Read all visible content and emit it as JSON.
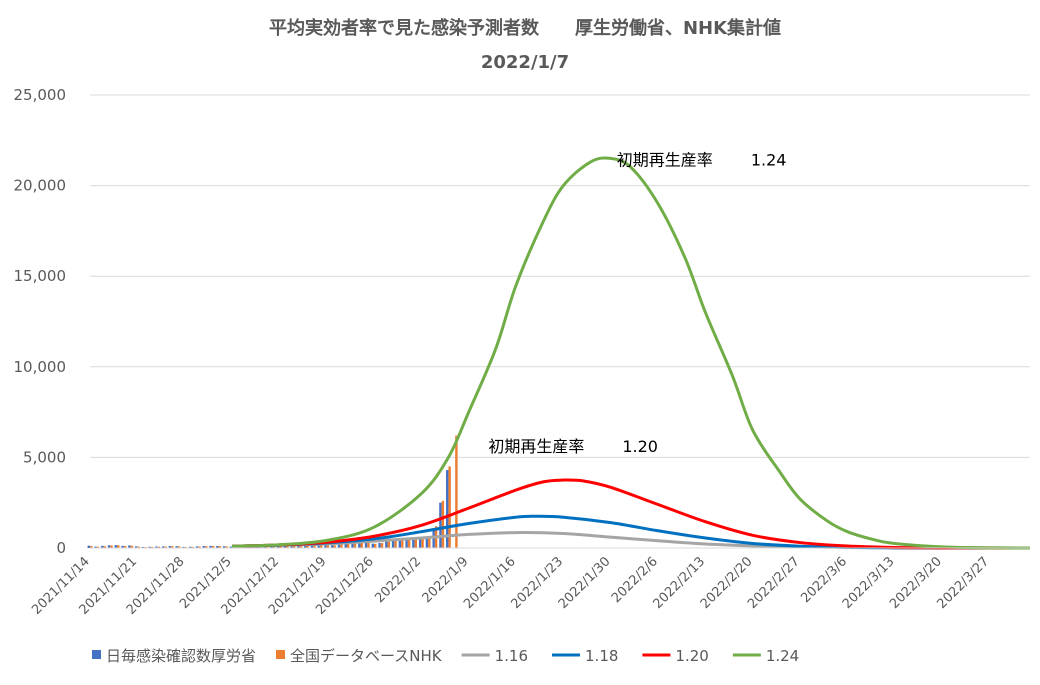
{
  "chart_data": {
    "type": "line",
    "title": "平均実効者率で見た感染予測者数　　厚生労働省、NHK集計値",
    "subtitle": "2022/1/7",
    "xlabel": "",
    "ylabel": "",
    "ylim": [
      0,
      25000
    ],
    "y_ticks": [
      "0",
      "5,000",
      "10,000",
      "15,000",
      "20,000",
      "25,000"
    ],
    "x_ticks": [
      "2021/11/14",
      "2021/11/21",
      "2021/11/28",
      "2021/12/5",
      "2021/12/12",
      "2021/12/19",
      "2021/12/26",
      "2022/1/2",
      "2022/1/9",
      "2022/1/16",
      "2022/1/23",
      "2022/1/30",
      "2022/2/6",
      "2022/2/13",
      "2022/2/20",
      "2022/2/27",
      "2022/3/6",
      "2022/3/13",
      "2022/3/20",
      "2022/3/27"
    ],
    "x_start": "2021/11/14",
    "x_end": "2022/4/2",
    "grid": true,
    "legend_position": "bottom",
    "bar_series": [
      {
        "name": "日毎感染確認数厚労省",
        "color": "#4472C4",
        "dates": [
          "2021/11/14",
          "2021/11/15",
          "2021/11/16",
          "2021/11/17",
          "2021/11/18",
          "2021/11/19",
          "2021/11/20",
          "2021/11/21",
          "2021/11/22",
          "2021/11/23",
          "2021/11/24",
          "2021/11/25",
          "2021/11/26",
          "2021/11/27",
          "2021/11/28",
          "2021/11/29",
          "2021/11/30",
          "2021/12/1",
          "2021/12/2",
          "2021/12/3",
          "2021/12/4",
          "2021/12/5",
          "2021/12/6",
          "2021/12/7",
          "2021/12/8",
          "2021/12/9",
          "2021/12/10",
          "2021/12/11",
          "2021/12/12",
          "2021/12/13",
          "2021/12/14",
          "2021/12/15",
          "2021/12/16",
          "2021/12/17",
          "2021/12/18",
          "2021/12/19",
          "2021/12/20",
          "2021/12/21",
          "2021/12/22",
          "2021/12/23",
          "2021/12/24",
          "2021/12/25",
          "2021/12/26",
          "2021/12/27",
          "2021/12/28",
          "2021/12/29",
          "2021/12/30",
          "2021/12/31",
          "2022/1/1",
          "2022/1/2",
          "2022/1/3",
          "2022/1/4",
          "2022/1/5",
          "2022/1/6",
          "2022/1/7"
        ],
        "values": [
          130,
          80,
          120,
          150,
          160,
          120,
          140,
          90,
          60,
          70,
          80,
          90,
          110,
          100,
          60,
          70,
          90,
          110,
          120,
          110,
          100,
          80,
          70,
          120,
          130,
          140,
          150,
          160,
          110,
          100,
          130,
          160,
          180,
          190,
          170,
          150,
          160,
          220,
          250,
          280,
          290,
          300,
          240,
          280,
          360,
          420,
          430,
          500,
          520,
          560,
          600,
          1100,
          2500,
          4300,
          0
        ]
      },
      {
        "name": "全国データベースNHK",
        "color": "#ED7D31",
        "dates": [
          "2021/11/14",
          "2021/11/15",
          "2021/11/16",
          "2021/11/17",
          "2021/11/18",
          "2021/11/19",
          "2021/11/20",
          "2021/11/21",
          "2021/11/22",
          "2021/11/23",
          "2021/11/24",
          "2021/11/25",
          "2021/11/26",
          "2021/11/27",
          "2021/11/28",
          "2021/11/29",
          "2021/11/30",
          "2021/12/1",
          "2021/12/2",
          "2021/12/3",
          "2021/12/4",
          "2021/12/5",
          "2021/12/6",
          "2021/12/7",
          "2021/12/8",
          "2021/12/9",
          "2021/12/10",
          "2021/12/11",
          "2021/12/12",
          "2021/12/13",
          "2021/12/14",
          "2021/12/15",
          "2021/12/16",
          "2021/12/17",
          "2021/12/18",
          "2021/12/19",
          "2021/12/20",
          "2021/12/21",
          "2021/12/22",
          "2021/12/23",
          "2021/12/24",
          "2021/12/25",
          "2021/12/26",
          "2021/12/27",
          "2021/12/28",
          "2021/12/29",
          "2021/12/30",
          "2021/12/31",
          "2022/1/1",
          "2022/1/2",
          "2022/1/3",
          "2022/1/4",
          "2022/1/5",
          "2022/1/6",
          "2022/1/7"
        ],
        "values": [
          110,
          70,
          100,
          140,
          150,
          110,
          130,
          80,
          50,
          60,
          70,
          80,
          100,
          90,
          50,
          60,
          80,
          100,
          110,
          100,
          90,
          70,
          60,
          110,
          120,
          130,
          140,
          150,
          100,
          90,
          120,
          150,
          170,
          180,
          160,
          140,
          150,
          210,
          240,
          270,
          280,
          290,
          230,
          270,
          350,
          410,
          420,
          490,
          510,
          550,
          590,
          1200,
          2600,
          4500,
          6200
        ]
      }
    ],
    "line_series": [
      {
        "name": "1.16",
        "color": "#A5A5A5",
        "points": [
          [
            "2021/12/5",
            100
          ],
          [
            "2021/12/12",
            150
          ],
          [
            "2021/12/19",
            230
          ],
          [
            "2021/12/26",
            380
          ],
          [
            "2022/1/2",
            550
          ],
          [
            "2022/1/9",
            750
          ],
          [
            "2022/1/16",
            850
          ],
          [
            "2022/1/23",
            800
          ],
          [
            "2022/1/30",
            600
          ],
          [
            "2022/2/6",
            400
          ],
          [
            "2022/2/13",
            220
          ],
          [
            "2022/2/20",
            120
          ],
          [
            "2022/2/27",
            60
          ],
          [
            "2022/3/6",
            30
          ],
          [
            "2022/3/13",
            10
          ],
          [
            "2022/3/27",
            0
          ],
          [
            "2022/4/2",
            0
          ]
        ]
      },
      {
        "name": "1.18",
        "color": "#0070C0",
        "points": [
          [
            "2021/12/5",
            100
          ],
          [
            "2021/12/12",
            160
          ],
          [
            "2021/12/19",
            280
          ],
          [
            "2021/12/26",
            500
          ],
          [
            "2022/1/2",
            900
          ],
          [
            "2022/1/9",
            1350
          ],
          [
            "2022/1/16",
            1700
          ],
          [
            "2022/1/19",
            1750
          ],
          [
            "2022/1/23",
            1700
          ],
          [
            "2022/1/30",
            1400
          ],
          [
            "2022/2/6",
            950
          ],
          [
            "2022/2/13",
            550
          ],
          [
            "2022/2/20",
            250
          ],
          [
            "2022/2/27",
            100
          ],
          [
            "2022/3/6",
            40
          ],
          [
            "2022/3/13",
            10
          ],
          [
            "2022/3/27",
            0
          ],
          [
            "2022/4/2",
            0
          ]
        ]
      },
      {
        "name": "1.20",
        "color": "#FF0000",
        "points": [
          [
            "2021/12/5",
            100
          ],
          [
            "2021/12/12",
            170
          ],
          [
            "2021/12/19",
            320
          ],
          [
            "2021/12/26",
            650
          ],
          [
            "2022/1/2",
            1250
          ],
          [
            "2022/1/9",
            2200
          ],
          [
            "2022/1/16",
            3200
          ],
          [
            "2022/1/20",
            3650
          ],
          [
            "2022/1/23",
            3750
          ],
          [
            "2022/1/26",
            3700
          ],
          [
            "2022/1/30",
            3350
          ],
          [
            "2022/2/6",
            2400
          ],
          [
            "2022/2/13",
            1450
          ],
          [
            "2022/2/20",
            700
          ],
          [
            "2022/2/27",
            300
          ],
          [
            "2022/3/6",
            110
          ],
          [
            "2022/3/13",
            30
          ],
          [
            "2022/3/20",
            10
          ],
          [
            "2022/4/2",
            0
          ]
        ]
      },
      {
        "name": "1.24",
        "color": "#70AD47",
        "points": [
          [
            "2021/12/5",
            100
          ],
          [
            "2021/12/12",
            180
          ],
          [
            "2021/12/19",
            420
          ],
          [
            "2021/12/26",
            1150
          ],
          [
            "2022/1/2",
            3000
          ],
          [
            "2022/1/6",
            5000
          ],
          [
            "2022/1/9",
            7500
          ],
          [
            "2022/1/13",
            11000
          ],
          [
            "2022/1/16",
            14500
          ],
          [
            "2022/1/20",
            18000
          ],
          [
            "2022/1/23",
            20000
          ],
          [
            "2022/1/27",
            21300
          ],
          [
            "2022/1/30",
            21500
          ],
          [
            "2022/2/2",
            21000
          ],
          [
            "2022/2/6",
            19000
          ],
          [
            "2022/2/10",
            16000
          ],
          [
            "2022/2/13",
            13000
          ],
          [
            "2022/2/17",
            9500
          ],
          [
            "2022/2/20",
            6500
          ],
          [
            "2022/2/24",
            4200
          ],
          [
            "2022/2/27",
            2700
          ],
          [
            "2022/3/3",
            1500
          ],
          [
            "2022/3/6",
            900
          ],
          [
            "2022/3/10",
            450
          ],
          [
            "2022/3/13",
            250
          ],
          [
            "2022/3/20",
            60
          ],
          [
            "2022/3/27",
            10
          ],
          [
            "2022/4/2",
            0
          ]
        ]
      }
    ],
    "annotations": [
      {
        "label": "初期再生産率",
        "value": "1.24",
        "date": "2022/2/7",
        "y": 21100
      },
      {
        "label": "初期再生産率",
        "value": "1.20",
        "date": "2022/1/19",
        "y": 5300
      }
    ]
  }
}
